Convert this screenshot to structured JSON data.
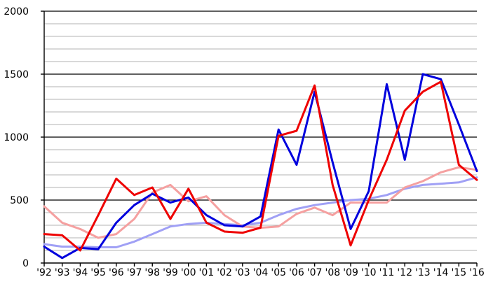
{
  "chart_data": {
    "type": "line",
    "title": "",
    "xlabel": "",
    "ylabel": "",
    "ylim": [
      0,
      2000
    ],
    "y_ticks": [
      0,
      500,
      1000,
      1500,
      2000
    ],
    "y_tick_labels": [
      "0",
      "500",
      "1000",
      "1500",
      "2000"
    ],
    "y_minor_step": 100,
    "grid": true,
    "legend": "none",
    "x_tick_labels": [
      "'92",
      "'93",
      "'94",
      "'95",
      "'96",
      "'97",
      "'98",
      "'99",
      "'00",
      "'01",
      "'02",
      "'03",
      "'04",
      "'05",
      "'06",
      "'07",
      "'08",
      "'09",
      "'10",
      "'11",
      "'12",
      "'13",
      "'14",
      "'15",
      "'16"
    ],
    "series": [
      {
        "color": "#a0a0f5",
        "values": [
          150,
          130,
          130,
          125,
          125,
          170,
          230,
          290,
          310,
          320,
          310,
          300,
          320,
          380,
          430,
          460,
          480,
          500,
          510,
          540,
          590,
          620,
          630,
          640,
          680
        ]
      },
      {
        "color": "#f5a0a0",
        "values": [
          450,
          320,
          270,
          200,
          230,
          350,
          560,
          620,
          490,
          530,
          380,
          290,
          280,
          290,
          390,
          440,
          380,
          480,
          480,
          480,
          600,
          650,
          720,
          760,
          740
        ]
      },
      {
        "color": "#0000dd",
        "values": [
          130,
          40,
          120,
          110,
          320,
          460,
          550,
          480,
          520,
          380,
          300,
          290,
          370,
          1060,
          780,
          1360,
          800,
          270,
          570,
          1420,
          820,
          1500,
          1460,
          1100,
          730
        ]
      },
      {
        "color": "#ee0000",
        "values": [
          230,
          220,
          100,
          380,
          670,
          540,
          600,
          350,
          590,
          320,
          250,
          240,
          280,
          1010,
          1050,
          1410,
          620,
          140,
          500,
          820,
          1210,
          1360,
          1440,
          780,
          660
        ]
      }
    ]
  }
}
